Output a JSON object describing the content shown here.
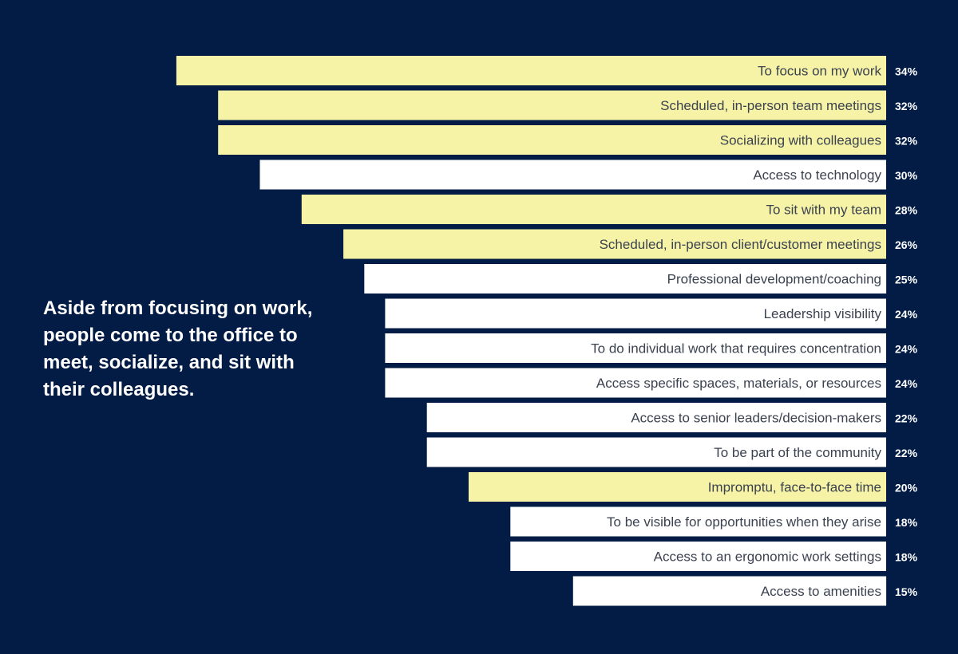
{
  "headline": "Aside from focusing on work, people come to the office to meet, socialize, and sit with their colleagues.",
  "colors": {
    "background": "#031c45",
    "highlight": "#f6f3a6",
    "plain": "#ffffff",
    "label_text": "#3b4250",
    "value_text": "#ffffff"
  },
  "chart_data": {
    "type": "bar",
    "orientation": "horizontal",
    "value_suffix": "%",
    "categories": [
      "To focus on my work",
      "Scheduled, in-person team meetings",
      "Socializing with colleagues",
      "Access to technology",
      "To sit with my team",
      "Scheduled, in-person client/customer meetings",
      "Professional development/coaching",
      "Leadership visibility",
      "To do individual work that requires concentration",
      "Access specific spaces, materials, or resources",
      "Access to senior leaders/decision-makers",
      "To be part of the community",
      "Impromptu, face-to-face time",
      "To be visible for opportunities when they arise",
      "Access to an ergonomic work settings",
      "Access to amenities"
    ],
    "values": [
      34,
      32,
      32,
      30,
      28,
      26,
      25,
      24,
      24,
      24,
      22,
      22,
      20,
      18,
      18,
      15
    ],
    "highlighted": [
      true,
      true,
      true,
      false,
      true,
      true,
      false,
      false,
      false,
      false,
      false,
      false,
      true,
      false,
      false,
      false
    ]
  }
}
